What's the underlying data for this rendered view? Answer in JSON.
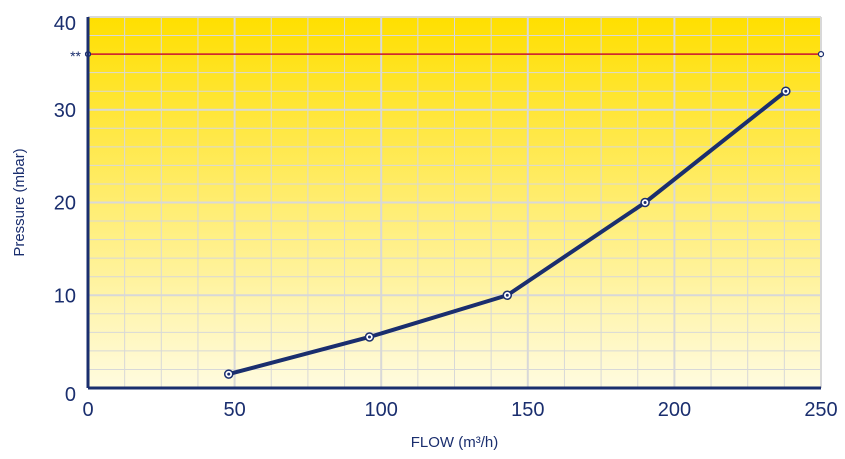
{
  "chart_data": {
    "type": "line",
    "xlabel": "FLOW (m³/h)",
    "ylabel": "Pressure (mbar)",
    "xlim": [
      0,
      250
    ],
    "ylim": [
      0,
      40
    ],
    "x_ticks": [
      0,
      50,
      100,
      150,
      200,
      250
    ],
    "y_ticks": [
      0,
      10,
      20,
      30,
      40
    ],
    "x_tick_labels": [
      "0",
      "50",
      "100",
      "150",
      "200",
      "250"
    ],
    "y_tick_labels": [
      "0",
      "10",
      "20",
      "30",
      "40"
    ],
    "grid": true,
    "series": [
      {
        "x": [
          48,
          96,
          143,
          190,
          238
        ],
        "y": [
          1.5,
          5.5,
          10,
          20,
          32
        ]
      }
    ],
    "reference_line": {
      "y": 36,
      "label": "**",
      "color": "#c8102e"
    },
    "colors": {
      "line": "#1a2e6e",
      "axis": "#1a2e6e",
      "grid": "#d8d8d8",
      "background_top": "#ffdf00",
      "background_bottom": "#fffbe0"
    }
  }
}
